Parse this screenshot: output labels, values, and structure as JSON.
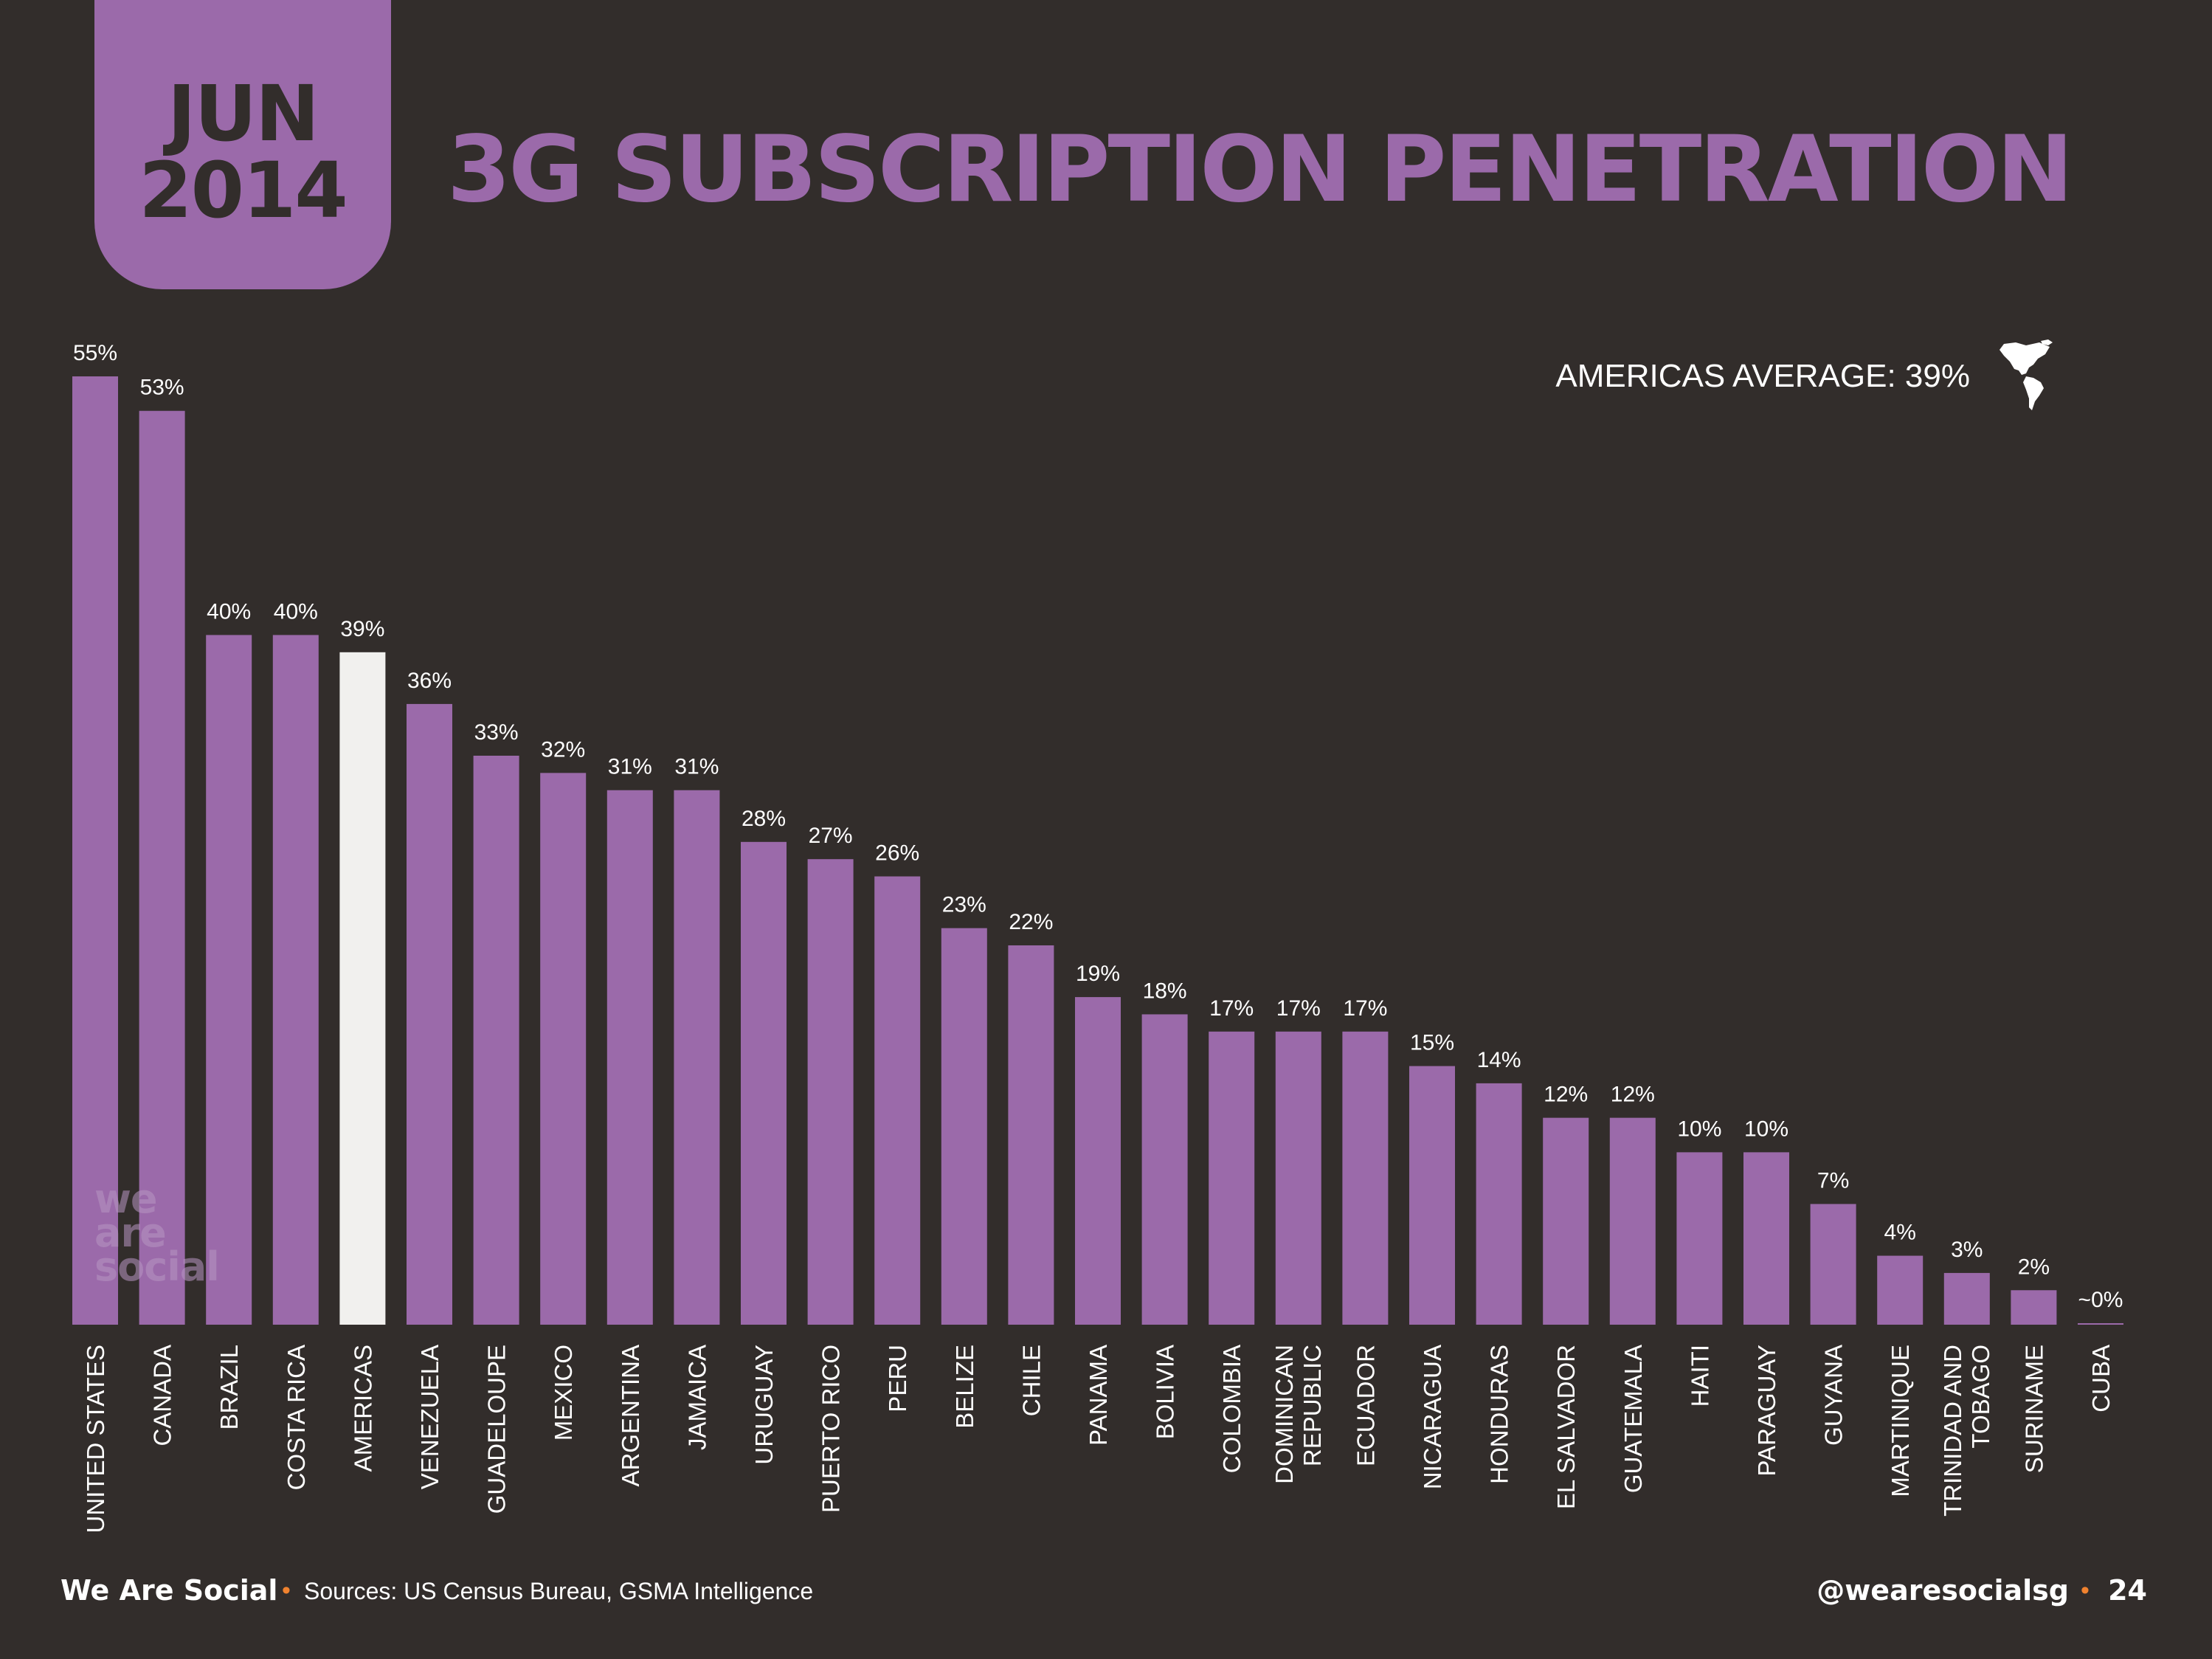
{
  "header": {
    "month": "JUN",
    "year": "2014",
    "title": "3G SUBSCRIPTION PENETRATION"
  },
  "average_label": "AMERICAS AVERAGE: 39%",
  "icons": {
    "globe": "americas-map-icon"
  },
  "watermark": [
    "we",
    "are",
    "social"
  ],
  "footer": {
    "brand": "We Are Social",
    "sources": "Sources: US Census Bureau, GSMA Intelligence",
    "handle": "@wearesocialsg",
    "page": "24"
  },
  "colors": {
    "background": "#322d2b",
    "bar": "#9b6aaa",
    "highlight_bar": "#f1f0ee",
    "accent_dot": "#f0822f",
    "text": "#ffffff"
  },
  "chart_data": {
    "type": "bar",
    "title": "3G SUBSCRIPTION PENETRATION",
    "categories": [
      "UNITED STATES",
      "CANADA",
      "BRAZIL",
      "COSTA RICA",
      "AMERICAS",
      "VENEZUELA",
      "GUADELOUPE",
      "MEXICO",
      "ARGENTINA",
      "JAMAICA",
      "URUGUAY",
      "PUERTO RICO",
      "PERU",
      "BELIZE",
      "CHILE",
      "PANAMA",
      "BOLIVIA",
      "COLOMBIA",
      "DOMINICAN REPUBLIC",
      "ECUADOR",
      "NICARAGUA",
      "HONDURAS",
      "EL SALVADOR",
      "GUATEMALA",
      "HAITI",
      "PARAGUAY",
      "GUYANA",
      "MARTINIQUE",
      "TRINIDAD AND TOBAGO",
      "SURINAME",
      "CUBA"
    ],
    "values": [
      55,
      53,
      40,
      40,
      39,
      36,
      33,
      32,
      31,
      31,
      28,
      27,
      26,
      23,
      22,
      19,
      18,
      17,
      17,
      17,
      15,
      14,
      12,
      12,
      10,
      10,
      7,
      4,
      3,
      2,
      0
    ],
    "value_labels": [
      "55%",
      "53%",
      "40%",
      "40%",
      "39%",
      "36%",
      "33%",
      "32%",
      "31%",
      "31%",
      "28%",
      "27%",
      "26%",
      "23%",
      "22%",
      "19%",
      "18%",
      "17%",
      "17%",
      "17%",
      "15%",
      "14%",
      "12%",
      "12%",
      "10%",
      "10%",
      "7%",
      "4%",
      "3%",
      "2%",
      "~0%"
    ],
    "highlight_category": "AMERICAS",
    "ylim": [
      0,
      55
    ],
    "grid": false,
    "legend": "none"
  }
}
